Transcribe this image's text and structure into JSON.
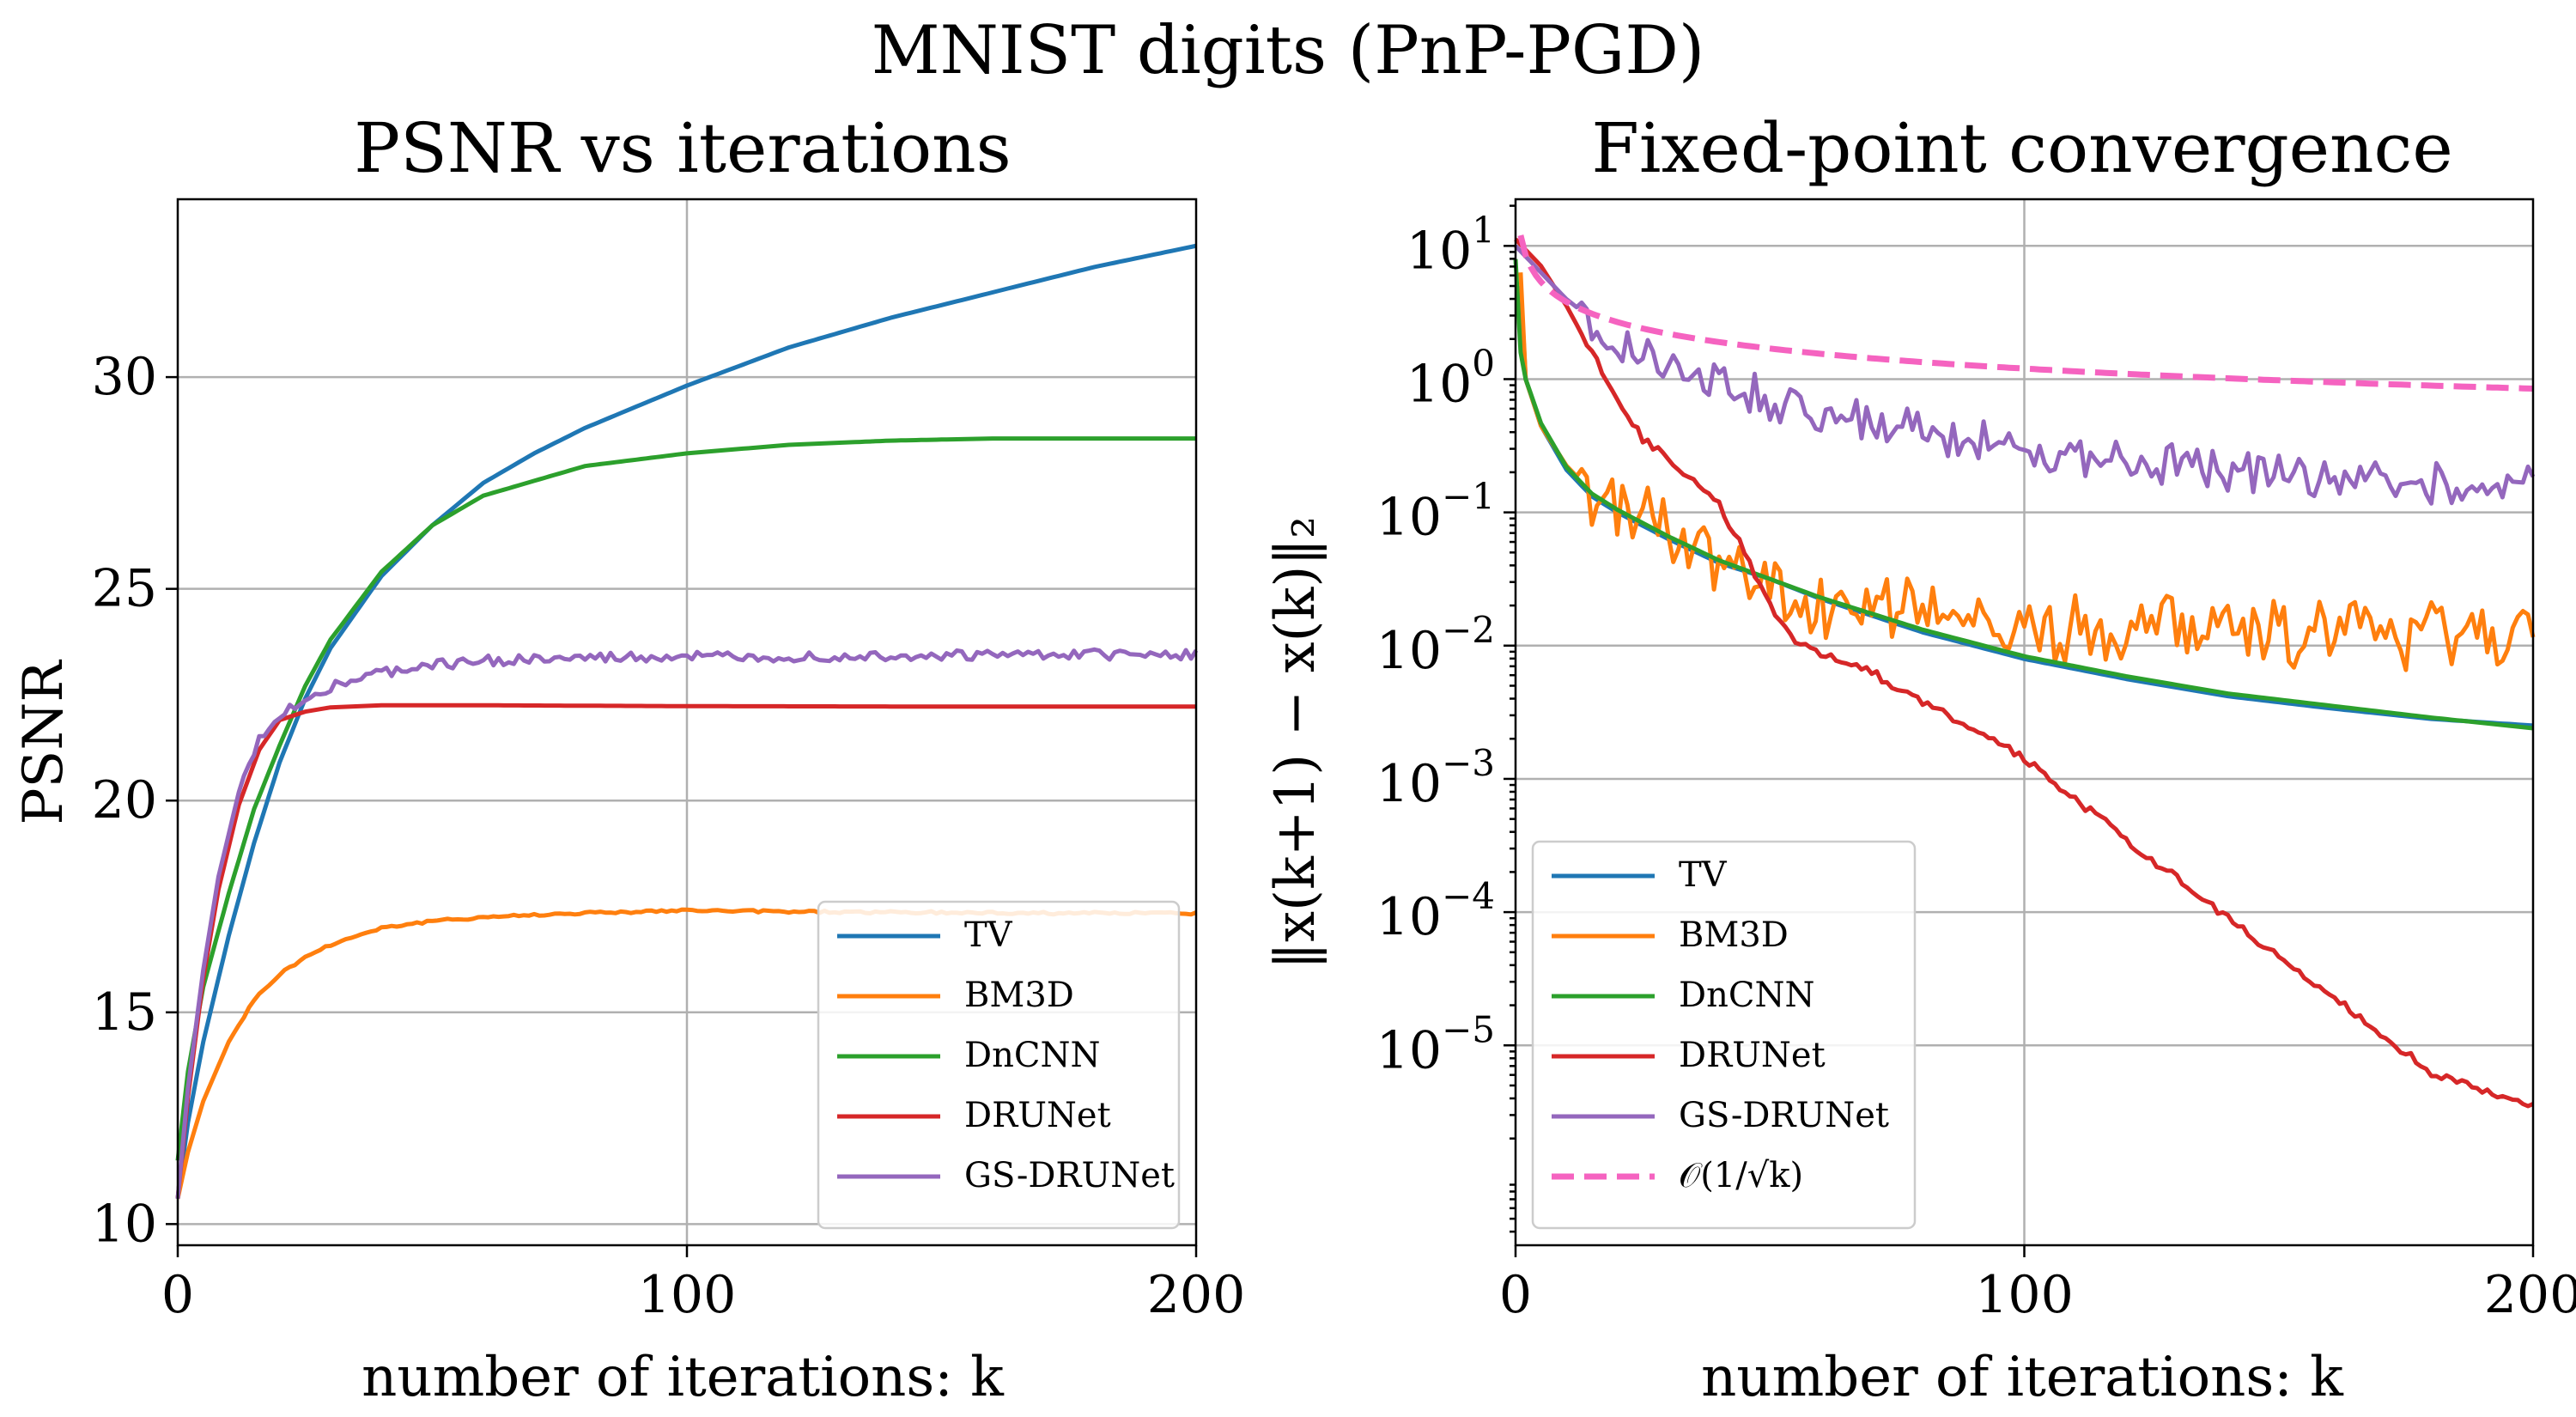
{
  "suptitle": "MNIST digits (PnP-PGD)",
  "chart_data": [
    {
      "type": "line",
      "title": "PSNR vs iterations",
      "xlabel": "number of iterations: k",
      "ylabel": "PSNR",
      "xlim": [
        0,
        200
      ],
      "ylim": [
        9.5,
        34.2
      ],
      "xticks": [
        "0",
        "100",
        "200"
      ],
      "yticks": [
        "10",
        "15",
        "20",
        "25",
        "30"
      ],
      "grid": true,
      "legend_position": "lower-right",
      "series": [
        {
          "name": "TV",
          "color": "#1f77b4",
          "dash": false,
          "noise": 0,
          "x": [
            0,
            2,
            5,
            10,
            15,
            20,
            25,
            30,
            40,
            50,
            60,
            70,
            80,
            100,
            120,
            140,
            160,
            180,
            200
          ],
          "y": [
            10.6,
            12.4,
            14.3,
            16.8,
            19.0,
            20.9,
            22.4,
            23.6,
            25.3,
            26.5,
            27.5,
            28.2,
            28.8,
            29.8,
            30.7,
            31.4,
            32.0,
            32.6,
            33.1
          ]
        },
        {
          "name": "BM3D",
          "color": "#ff7f0e",
          "dash": false,
          "noise": 0.02,
          "x": [
            0,
            2,
            5,
            10,
            15,
            20,
            25,
            30,
            40,
            50,
            60,
            80,
            100,
            120,
            140,
            160,
            180,
            200
          ],
          "y": [
            10.6,
            11.7,
            12.9,
            14.3,
            15.3,
            15.9,
            16.3,
            16.6,
            17.0,
            17.15,
            17.25,
            17.35,
            17.4,
            17.38,
            17.36,
            17.35,
            17.34,
            17.34
          ]
        },
        {
          "name": "DnCNN",
          "color": "#2ca02c",
          "dash": false,
          "noise": 0,
          "x": [
            0,
            2,
            5,
            10,
            15,
            20,
            25,
            30,
            40,
            50,
            60,
            80,
            100,
            120,
            140,
            160,
            180,
            200
          ],
          "y": [
            11.5,
            13.6,
            15.6,
            17.8,
            19.8,
            21.3,
            22.7,
            23.8,
            25.4,
            26.5,
            27.2,
            27.9,
            28.2,
            28.4,
            28.5,
            28.55,
            28.55,
            28.55
          ]
        },
        {
          "name": "DRUNet",
          "color": "#d62728",
          "dash": false,
          "noise": 0,
          "x": [
            0,
            2,
            5,
            8,
            12,
            16,
            20,
            25,
            30,
            40,
            60,
            100,
            150,
            200
          ],
          "y": [
            10.6,
            13.0,
            15.8,
            17.9,
            19.9,
            21.2,
            21.9,
            22.1,
            22.2,
            22.25,
            22.25,
            22.23,
            22.22,
            22.22
          ]
        },
        {
          "name": "GS-DRUNet",
          "color": "#9467bd",
          "dash": false,
          "noise": 0.08,
          "x": [
            0,
            2,
            5,
            8,
            12,
            16,
            20,
            25,
            30,
            40,
            50,
            60,
            80,
            100,
            120,
            140,
            160,
            180,
            200
          ],
          "y": [
            10.6,
            13.2,
            16.0,
            18.2,
            20.2,
            21.4,
            22.0,
            22.4,
            22.7,
            23.0,
            23.2,
            23.3,
            23.35,
            23.4,
            23.4,
            23.42,
            23.43,
            23.44,
            23.44
          ]
        }
      ]
    },
    {
      "type": "line",
      "title": "Fixed-point convergence",
      "xlabel": "number of iterations: k",
      "ylabel": "‖x(k+1) − x(k)‖₂",
      "xlim": [
        0,
        200
      ],
      "ylim_log10": [
        -6.5,
        1.35
      ],
      "yscale": "log",
      "xticks": [
        "0",
        "100",
        "200"
      ],
      "yticks": [
        "10^1",
        "10^0",
        "10^-1",
        "10^-2",
        "10^-3",
        "10^-4",
        "10^-5"
      ],
      "grid": true,
      "legend_position": "lower-left",
      "series": [
        {
          "name": "TV",
          "color": "#1f77b4",
          "dash": false,
          "noise": 0,
          "x": [
            1,
            2,
            5,
            10,
            15,
            20,
            30,
            40,
            50,
            60,
            80,
            100,
            120,
            140,
            160,
            180,
            200
          ],
          "y_log10": [
            0.7,
            0.0,
            -0.35,
            -0.68,
            -0.88,
            -1.0,
            -1.2,
            -1.38,
            -1.5,
            -1.65,
            -1.9,
            -2.1,
            -2.25,
            -2.38,
            -2.47,
            -2.55,
            -2.6
          ]
        },
        {
          "name": "BM3D",
          "color": "#ff7f0e",
          "dash": false,
          "noise": 0.16,
          "x": [
            1,
            2,
            5,
            10,
            15,
            20,
            30,
            40,
            50,
            60,
            70,
            80,
            100,
            120,
            140,
            160,
            180,
            200
          ],
          "y_log10": [
            0.8,
            0.0,
            -0.35,
            -0.65,
            -0.85,
            -0.95,
            -1.15,
            -1.35,
            -1.6,
            -1.75,
            -1.65,
            -1.75,
            -1.9,
            -1.85,
            -1.9,
            -1.92,
            -1.93,
            -1.95
          ]
        },
        {
          "name": "DnCNN",
          "color": "#2ca02c",
          "dash": false,
          "noise": 0,
          "x": [
            0,
            1,
            2,
            5,
            10,
            15,
            20,
            30,
            40,
            50,
            60,
            80,
            100,
            120,
            140,
            160,
            180,
            200
          ],
          "y_log10": [
            0.9,
            0.2,
            0.0,
            -0.33,
            -0.66,
            -0.86,
            -0.98,
            -1.18,
            -1.36,
            -1.5,
            -1.64,
            -1.88,
            -2.08,
            -2.23,
            -2.36,
            -2.45,
            -2.54,
            -2.62
          ]
        },
        {
          "name": "DRUNet",
          "color": "#d62728",
          "dash": false,
          "noise": 0.02,
          "x": [
            0,
            5,
            10,
            15,
            20,
            25,
            30,
            35,
            40,
            45,
            50,
            55,
            60,
            70,
            80,
            90,
            100,
            120,
            140,
            160,
            180,
            190,
            200
          ],
          "y_log10": [
            1.05,
            0.85,
            0.55,
            0.2,
            -0.15,
            -0.45,
            -0.6,
            -0.75,
            -0.95,
            -1.3,
            -1.7,
            -1.95,
            -2.05,
            -2.2,
            -2.42,
            -2.62,
            -2.85,
            -3.45,
            -4.05,
            -4.62,
            -5.2,
            -5.35,
            -5.45
          ]
        },
        {
          "name": "GS-DRUNet",
          "color": "#9467bd",
          "dash": false,
          "noise": 0.1,
          "x": [
            0,
            5,
            10,
            15,
            20,
            30,
            40,
            50,
            60,
            80,
            100,
            120,
            140,
            160,
            180,
            200
          ],
          "y_log10": [
            1.0,
            0.8,
            0.6,
            0.45,
            0.3,
            0.1,
            -0.02,
            -0.15,
            -0.25,
            -0.4,
            -0.52,
            -0.62,
            -0.68,
            -0.74,
            -0.78,
            -0.8
          ]
        },
        {
          "name": "𝒪(1/√k)",
          "color": "#f563c0",
          "dash": true,
          "noise": 0,
          "fn": "inv_sqrt",
          "scale": 12
        },
        {
          "name": "",
          "color": "#f563c0",
          "dash": true,
          "noise": 0
        }
      ]
    }
  ]
}
